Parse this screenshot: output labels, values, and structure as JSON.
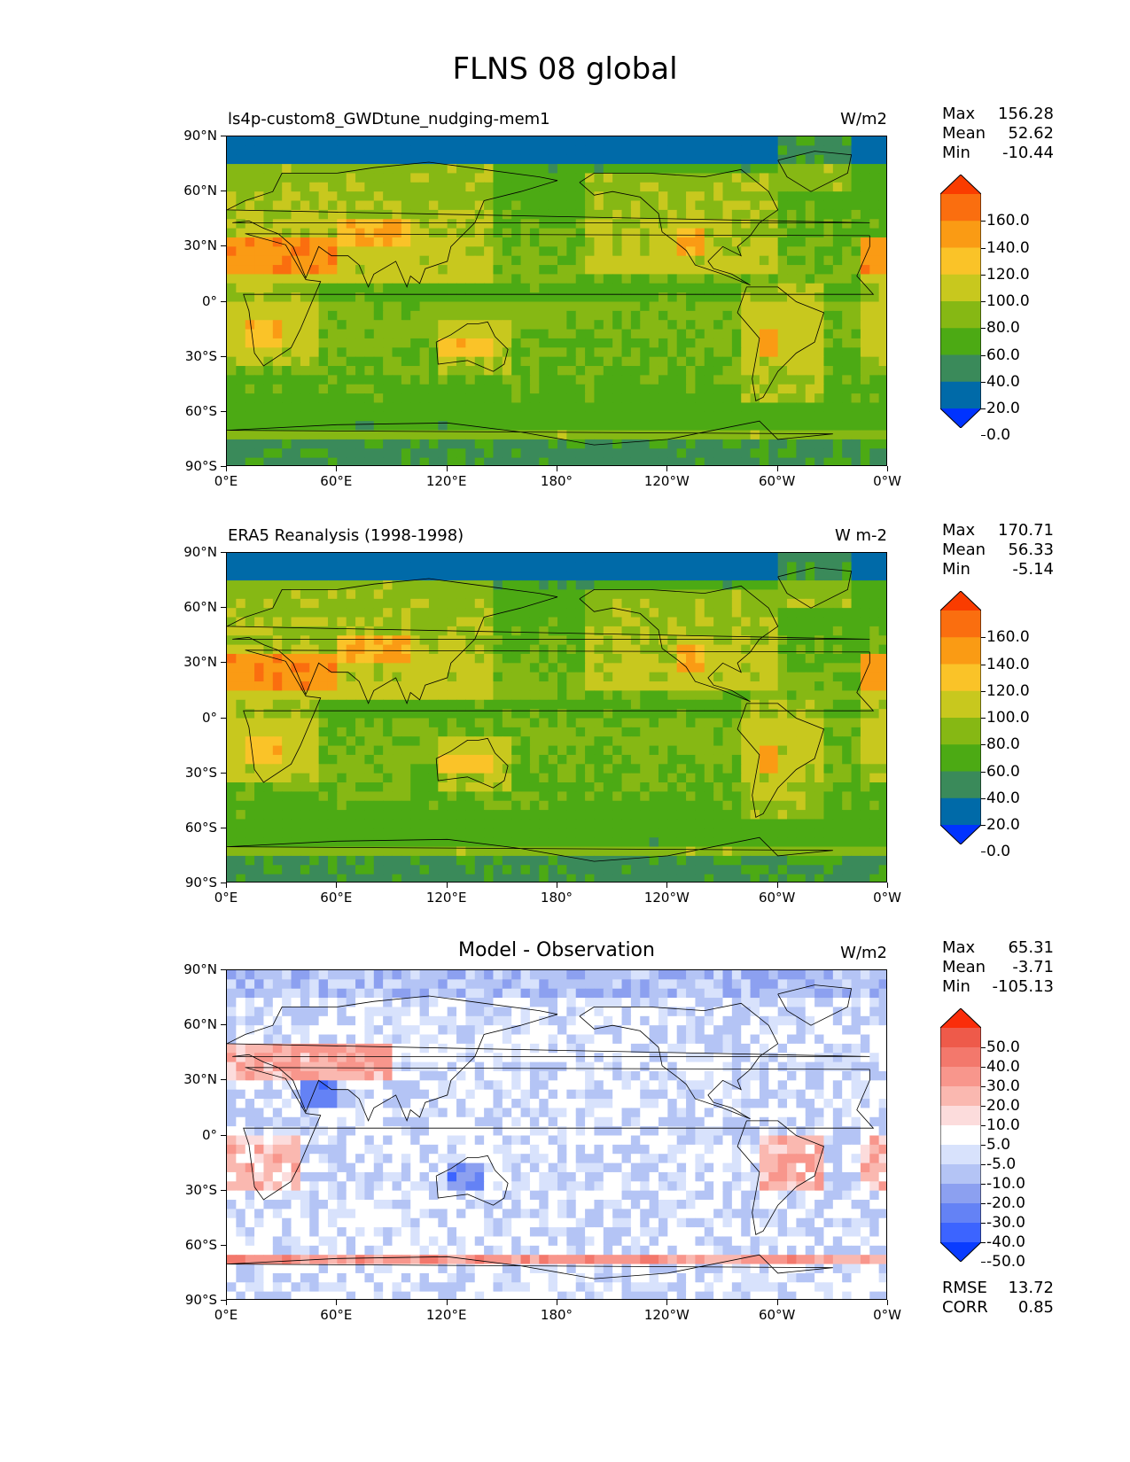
{
  "figure_title": "FLNS 08 global",
  "axes": {
    "lat_ticks": [
      "90°N",
      "60°N",
      "30°N",
      "0°",
      "30°S",
      "60°S",
      "90°S"
    ],
    "lon_ticks": [
      "0°E",
      "60°E",
      "120°E",
      "180°",
      "120°W",
      "60°W",
      "0°W"
    ]
  },
  "panels": [
    {
      "id": "test",
      "title": "ls4p-custom8_GWDtune_nudging-mem1",
      "units": "W/m2",
      "stats": {
        "max_label": "Max",
        "max": "156.28",
        "mean_label": "Mean",
        "mean": "52.62",
        "min_label": "Min",
        "min": "-10.44"
      },
      "colorbar_labels": [
        "160.0",
        "140.0",
        "120.0",
        "100.0",
        "80.0",
        "60.0",
        "40.0",
        "20.0",
        "0.0"
      ]
    },
    {
      "id": "ref",
      "title": "ERA5 Reanalysis (1998-1998)",
      "units": "W m-2",
      "stats": {
        "max_label": "Max",
        "max": "170.71",
        "mean_label": "Mean",
        "mean": "56.33",
        "min_label": "Min",
        "min": "-5.14"
      },
      "colorbar_labels": [
        "160.0",
        "140.0",
        "120.0",
        "100.0",
        "80.0",
        "60.0",
        "40.0",
        "20.0",
        "0.0"
      ]
    },
    {
      "id": "diff",
      "title": "Model - Observation",
      "units": "W/m2",
      "stats": {
        "max_label": "Max",
        "max": "65.31",
        "mean_label": "Mean",
        "mean": "-3.71",
        "min_label": "Min",
        "min": "-105.13"
      },
      "colorbar_labels": [
        "50.0",
        "40.0",
        "30.0",
        "20.0",
        "10.0",
        "5.0",
        "-5.0",
        "-10.0",
        "-20.0",
        "-30.0",
        "-40.0",
        "-50.0"
      ],
      "extra_stats": {
        "rmse_label": "RMSE",
        "rmse": "13.72",
        "corr_label": "CORR",
        "corr": "0.85"
      }
    }
  ],
  "colors": {
    "field_levels": [
      "#0033ff",
      "#006aa8",
      "#3a8a5a",
      "#4caa14",
      "#86b814",
      "#c8c81e",
      "#fac328",
      "#fa9b14",
      "#fa6e0f",
      "#fa3c00"
    ],
    "diff_levels": [
      "#0a3cff",
      "#3c64ff",
      "#6482f5",
      "#8ca0f0",
      "#b4c4f5",
      "#d8e2fc",
      "#ffffff",
      "#fcdcdc",
      "#fab8b0",
      "#f8968c",
      "#f3786c",
      "#ee5a4a",
      "#fa2d0a"
    ]
  }
}
